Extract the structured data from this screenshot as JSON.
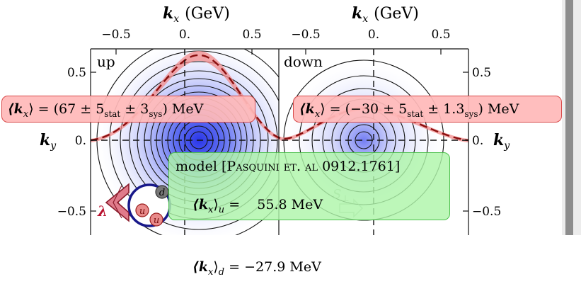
{
  "axes": {
    "kx_label": "(GeV)",
    "kx_symbol": "k",
    "kx_sub": "x",
    "ky_symbol": "k",
    "ky_sub": "y",
    "top_ticks": [
      "−0.5",
      "0.",
      "0.5"
    ],
    "left_ticks": [
      "0.5",
      "0.",
      "−0.5"
    ],
    "right_ticks": [
      "0.5",
      "0.",
      "−0.5"
    ]
  },
  "panels": {
    "left_label": "up",
    "right_label": "down"
  },
  "results": {
    "up": {
      "lhs": "⟨k",
      "lhs_sub": "x",
      "rhs": "⟩ = (67 ± 5",
      "stat": "stat",
      "mid": " ± 3",
      "sys": "sys",
      "unit": ") MeV"
    },
    "down": {
      "lhs": "⟨k",
      "lhs_sub": "x",
      "rhs": "⟩ = (−30 ± 5",
      "stat": "stat",
      "mid": " ± 1.3",
      "sys": "sys",
      "unit": ") MeV"
    }
  },
  "model": {
    "title_prefix": "model [",
    "title_author": "Pasquini et. al",
    "title_ref": " 0912.1761]",
    "u_row": {
      "lhs": "⟨k",
      "sub": "x",
      "rhs": "⟩",
      "flav": "u",
      "eq": " =    55.8 MeV"
    },
    "d_row": {
      "lhs": "⟨k",
      "sub": "x",
      "rhs": "⟩",
      "flav": "d",
      "eq": " = −27.9 MeV"
    }
  },
  "hadron": {
    "quark_labels": [
      "d",
      "u",
      "u"
    ],
    "lambda": "λ",
    "spin_label": "S",
    "spin_sub": "⊥"
  },
  "colors": {
    "density": "#3040e8",
    "curve": "#8a0e0e",
    "band": "#f28a8a",
    "red_box": "#ffb9b9",
    "green_box": "#aff5aa"
  }
}
